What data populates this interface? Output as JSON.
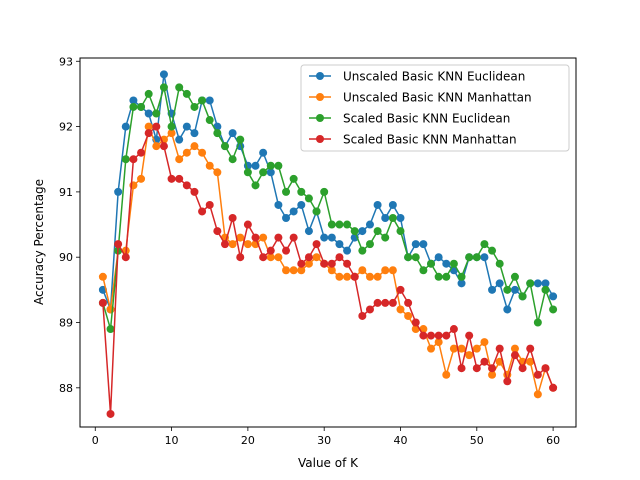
{
  "chart_data": {
    "type": "line",
    "title": "",
    "xlabel": "Value of K",
    "ylabel": "Accuracy Percentage",
    "xlim": [
      -2,
      63
    ],
    "ylim": [
      87.4,
      93.05
    ],
    "xticks": [
      0,
      10,
      20,
      30,
      40,
      50,
      60
    ],
    "yticks": [
      88,
      89,
      90,
      91,
      92,
      93
    ],
    "grid": false,
    "legend_position": "top-right",
    "x": [
      1,
      2,
      3,
      4,
      5,
      6,
      7,
      8,
      9,
      10,
      11,
      12,
      13,
      14,
      15,
      16,
      17,
      18,
      19,
      20,
      21,
      22,
      23,
      24,
      25,
      26,
      27,
      28,
      29,
      30,
      31,
      32,
      33,
      34,
      35,
      36,
      37,
      38,
      39,
      40,
      41,
      42,
      43,
      44,
      45,
      46,
      47,
      48,
      49,
      50,
      51,
      52,
      53,
      54,
      55,
      56,
      57,
      58,
      59,
      60
    ],
    "series": [
      {
        "name": "Unscaled Basic KNN Euclidean",
        "color": "#1f77b4",
        "values": [
          89.5,
          89.2,
          91.0,
          92.0,
          92.4,
          92.3,
          92.2,
          91.8,
          92.8,
          92.2,
          91.8,
          92.0,
          91.9,
          92.4,
          92.4,
          92.0,
          91.7,
          91.9,
          91.7,
          91.4,
          91.4,
          91.6,
          91.3,
          90.8,
          90.6,
          90.7,
          90.8,
          90.4,
          90.7,
          90.3,
          90.3,
          90.2,
          90.1,
          90.3,
          90.4,
          90.5,
          90.8,
          90.6,
          90.8,
          90.6,
          90.0,
          90.2,
          90.2,
          89.9,
          90.0,
          89.9,
          89.8,
          89.6,
          90.0,
          90.0,
          90.0,
          89.5,
          89.6,
          89.2,
          89.5,
          89.4,
          89.6,
          89.6,
          89.6,
          89.4
        ]
      },
      {
        "name": "Unscaled Basic KNN Manhattan",
        "color": "#ff7f0e",
        "values": [
          89.7,
          89.2,
          90.1,
          90.1,
          91.1,
          91.2,
          92.0,
          91.7,
          91.8,
          91.9,
          91.5,
          91.6,
          91.7,
          91.6,
          91.4,
          91.3,
          90.3,
          90.2,
          90.3,
          90.2,
          90.2,
          90.3,
          90.0,
          90.0,
          89.8,
          89.8,
          89.8,
          89.9,
          90.0,
          89.9,
          89.8,
          89.7,
          89.7,
          89.7,
          89.8,
          89.7,
          89.7,
          89.8,
          89.8,
          89.2,
          89.1,
          88.9,
          88.9,
          88.6,
          88.7,
          88.2,
          88.6,
          88.6,
          88.5,
          88.6,
          88.7,
          88.2,
          88.4,
          88.2,
          88.6,
          88.4,
          88.4,
          87.9,
          88.3,
          88.0
        ]
      },
      {
        "name": "Scaled Basic KNN Euclidean",
        "color": "#2ca02c",
        "values": [
          89.3,
          88.9,
          90.1,
          91.5,
          92.3,
          92.3,
          92.5,
          92.2,
          92.6,
          92.0,
          92.6,
          92.5,
          92.3,
          92.4,
          92.1,
          91.9,
          91.7,
          91.5,
          91.8,
          91.3,
          91.1,
          91.3,
          91.4,
          91.4,
          91.0,
          91.2,
          91.0,
          90.9,
          90.7,
          91.0,
          90.5,
          90.5,
          90.5,
          90.4,
          90.1,
          90.2,
          90.4,
          90.3,
          90.6,
          90.4,
          90.0,
          90.0,
          89.8,
          89.9,
          89.7,
          89.7,
          89.9,
          89.7,
          90.0,
          90.0,
          90.2,
          90.1,
          89.9,
          89.5,
          89.7,
          89.4,
          89.6,
          89.0,
          89.5,
          89.2
        ]
      },
      {
        "name": "Scaled Basic KNN Manhattan",
        "color": "#d62728",
        "values": [
          89.3,
          87.6,
          90.2,
          90.0,
          91.5,
          91.6,
          91.9,
          92.0,
          91.7,
          91.2,
          91.2,
          91.1,
          91.0,
          90.7,
          90.8,
          90.4,
          90.2,
          90.6,
          90.0,
          90.5,
          90.3,
          90.0,
          90.1,
          90.3,
          90.1,
          90.3,
          89.9,
          90.0,
          90.2,
          89.9,
          89.9,
          90.0,
          89.9,
          89.7,
          89.1,
          89.2,
          89.3,
          89.3,
          89.3,
          89.5,
          89.3,
          89.0,
          88.8,
          88.8,
          88.8,
          88.8,
          88.9,
          88.3,
          88.8,
          88.3,
          88.4,
          88.3,
          88.6,
          88.1,
          88.5,
          88.3,
          88.6,
          88.2,
          88.3,
          88.0
        ]
      }
    ]
  }
}
